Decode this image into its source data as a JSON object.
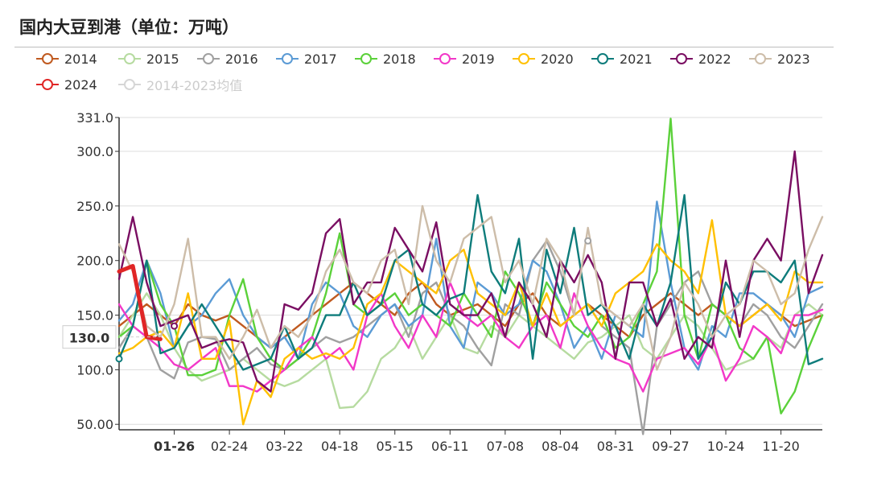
{
  "title": "国内大豆到港（单位：万吨）",
  "colors": {
    "2014": "#c05a20",
    "2015": "#b6dba0",
    "2016": "#a0a0a0",
    "2017": "#5b9bd5",
    "2018": "#5bd13a",
    "2019": "#f238c8",
    "2020": "#ffc000",
    "2021": "#0e7c7b",
    "2022": "#7a0e62",
    "2023": "#cdbda9",
    "2024": "#e02626",
    "avg": "#d6d6d6"
  },
  "chart_data": {
    "type": "line",
    "title": "国内大豆到港（单位：万吨）",
    "xlabel": "",
    "ylabel": "",
    "weeks": 52,
    "x_ticks": [
      {
        "week": 4,
        "label": "01-26"
      },
      {
        "week": 8,
        "label": "02-24"
      },
      {
        "week": 12,
        "label": "03-22"
      },
      {
        "week": 16,
        "label": "04-18"
      },
      {
        "week": 20,
        "label": "05-15"
      },
      {
        "week": 24,
        "label": "06-11"
      },
      {
        "week": 28,
        "label": "07-08"
      },
      {
        "week": 32,
        "label": "08-04"
      },
      {
        "week": 36,
        "label": "08-31"
      },
      {
        "week": 40,
        "label": "09-27"
      },
      {
        "week": 44,
        "label": "10-24"
      },
      {
        "week": 48,
        "label": "11-20"
      }
    ],
    "highlight_x_label": "01-26",
    "y_ticks": [
      50,
      100,
      150,
      200,
      250,
      300,
      331
    ],
    "y_tick_labels": [
      "50.00",
      "100.0",
      "150.0",
      "200.0",
      "250.0",
      "300.0",
      "331.0"
    ],
    "ylim": [
      45,
      331
    ],
    "pointer": {
      "value": 130,
      "label": "130.0"
    },
    "legend_placement": "top",
    "series": [
      {
        "name": "2014",
        "values": [
          140,
          150,
          160,
          150,
          140,
          160,
          150,
          145,
          150,
          140,
          130,
          120,
          130,
          140,
          150,
          160,
          170,
          180,
          170,
          160,
          150,
          170,
          180,
          160,
          150,
          155,
          160,
          150,
          140,
          160,
          170,
          150,
          140,
          150,
          160,
          150,
          140,
          130,
          150,
          160,
          170,
          160,
          150,
          160,
          150,
          140,
          150,
          160,
          150,
          140,
          145,
          150
        ]
      },
      {
        "name": "2015",
        "values": [
          130,
          150,
          170,
          150,
          120,
          100,
          90,
          95,
          100,
          110,
          100,
          90,
          85,
          90,
          100,
          110,
          65,
          66,
          80,
          110,
          120,
          140,
          110,
          130,
          150,
          120,
          115,
          140,
          130,
          150,
          140,
          130,
          120,
          110,
          125,
          130,
          140,
          150,
          120,
          110,
          130,
          150,
          140,
          120,
          100,
          105,
          110,
          130,
          120,
          150,
          160,
          150
        ]
      },
      {
        "name": "2016",
        "values": [
          120,
          140,
          130,
          100,
          92,
          125,
          130,
          128,
          100,
          110,
          120,
          105,
          100,
          110,
          120,
          130,
          125,
          130,
          140,
          150,
          160,
          130,
          170,
          180,
          150,
          140,
          120,
          104,
          160,
          150,
          200,
          218,
          190,
          150,
          160,
          140,
          130,
          120,
          41,
          140,
          160,
          180,
          190,
          160,
          150,
          140,
          160,
          150,
          130,
          120,
          140,
          160
        ]
      },
      {
        "name": "2017",
        "values": [
          145,
          160,
          200,
          170,
          120,
          140,
          150,
          170,
          183,
          150,
          130,
          120,
          130,
          110,
          160,
          180,
          170,
          140,
          130,
          150,
          160,
          140,
          150,
          220,
          140,
          120,
          180,
          170,
          150,
          160,
          200,
          190,
          160,
          120,
          140,
          110,
          150,
          140,
          130,
          254,
          180,
          120,
          100,
          140,
          130,
          170,
          170,
          160,
          150,
          130,
          170,
          176
        ]
      },
      {
        "name": "2018",
        "values": [
          130,
          140,
          200,
          160,
          140,
          95,
          95,
          100,
          150,
          183,
          130,
          110,
          100,
          110,
          130,
          170,
          225,
          160,
          150,
          160,
          170,
          150,
          160,
          150,
          140,
          170,
          150,
          130,
          190,
          170,
          140,
          180,
          160,
          140,
          130,
          150,
          120,
          130,
          160,
          190,
          330,
          150,
          110,
          160,
          150,
          120,
          110,
          130,
          60,
          80,
          120,
          150
        ]
      },
      {
        "name": "2019",
        "values": [
          160,
          140,
          130,
          120,
          105,
          100,
          110,
          120,
          85,
          85,
          80,
          90,
          100,
          120,
          130,
          110,
          120,
          100,
          150,
          170,
          140,
          120,
          150,
          130,
          180,
          150,
          140,
          150,
          130,
          120,
          140,
          150,
          120,
          170,
          140,
          120,
          110,
          105,
          80,
          110,
          115,
          120,
          105,
          130,
          90,
          110,
          140,
          130,
          115,
          150,
          150,
          155
        ]
      },
      {
        "name": "2020",
        "values": [
          115,
          120,
          130,
          135,
          120,
          170,
          110,
          110,
          145,
          50,
          90,
          75,
          110,
          120,
          110,
          115,
          110,
          120,
          160,
          170,
          200,
          190,
          180,
          170,
          200,
          210,
          170,
          160,
          150,
          180,
          140,
          170,
          140,
          150,
          160,
          140,
          170,
          180,
          190,
          215,
          200,
          190,
          170,
          237,
          150,
          140,
          150,
          160,
          145,
          190,
          180,
          180
        ]
      },
      {
        "name": "2021",
        "values": [
          110,
          140,
          200,
          115,
          120,
          140,
          160,
          140,
          120,
          100,
          105,
          110,
          140,
          110,
          120,
          150,
          150,
          180,
          150,
          160,
          200,
          210,
          160,
          150,
          165,
          170,
          260,
          190,
          170,
          220,
          110,
          210,
          170,
          230,
          150,
          160,
          140,
          110,
          160,
          140,
          180,
          260,
          110,
          130,
          180,
          160,
          190,
          190,
          180,
          200,
          105,
          110
        ]
      },
      {
        "name": "2022",
        "values": [
          183,
          240,
          180,
          140,
          145,
          150,
          120,
          125,
          128,
          125,
          90,
          80,
          160,
          155,
          170,
          225,
          238,
          160,
          180,
          180,
          230,
          210,
          190,
          235,
          160,
          150,
          150,
          170,
          130,
          180,
          160,
          130,
          200,
          180,
          205,
          180,
          110,
          180,
          180,
          140,
          165,
          110,
          130,
          120,
          200,
          130,
          200,
          220,
          200,
          300,
          170,
          205
        ]
      },
      {
        "name": "2023",
        "values": [
          215,
          190,
          140,
          130,
          160,
          220,
          130,
          130,
          110,
          130,
          155,
          120,
          140,
          130,
          150,
          190,
          210,
          180,
          170,
          200,
          210,
          160,
          250,
          200,
          180,
          220,
          230,
          240,
          180,
          200,
          160,
          220,
          200,
          150,
          230,
          160,
          150,
          140,
          160,
          100,
          130,
          180,
          160,
          130,
          150,
          160,
          200,
          190,
          160,
          170,
          210,
          240
        ]
      }
    ],
    "highlight_series": {
      "name": "2024",
      "values": [
        190,
        195,
        130,
        128
      ]
    },
    "avg_series": {
      "name": "2014-2023均值"
    }
  },
  "legend": [
    {
      "key": "2014",
      "label": "2014"
    },
    {
      "key": "2015",
      "label": "2015"
    },
    {
      "key": "2016",
      "label": "2016"
    },
    {
      "key": "2017",
      "label": "2017"
    },
    {
      "key": "2018",
      "label": "2018"
    },
    {
      "key": "2019",
      "label": "2019"
    },
    {
      "key": "2020",
      "label": "2020"
    },
    {
      "key": "2021",
      "label": "2021"
    },
    {
      "key": "2022",
      "label": "2022"
    },
    {
      "key": "2023",
      "label": "2023"
    },
    {
      "key": "2024",
      "label": "2024"
    },
    {
      "key": "avg",
      "label": "2014-2023均值",
      "muted": true
    }
  ]
}
